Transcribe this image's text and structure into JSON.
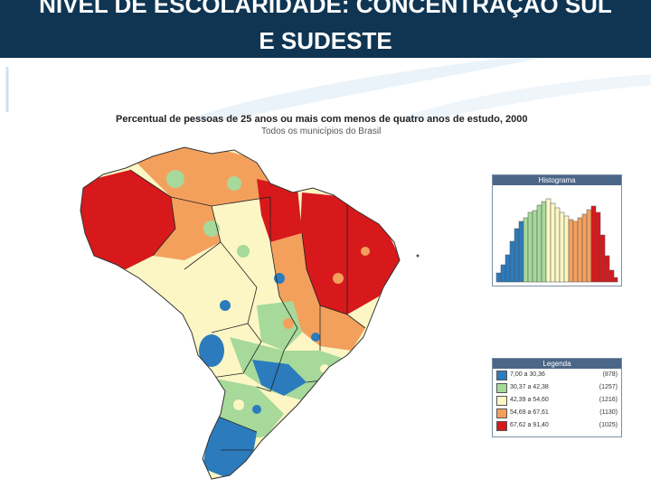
{
  "slide": {
    "title_line1": "NÍVEL DE ESCOLARIDADE: CONCENTRAÇÃO SUL",
    "title_line2": "E SUDESTE"
  },
  "map": {
    "title": "Percentual de pessoas de 25 anos ou mais com menos de quatro anos de estudo, 2000",
    "subtitle": "Todos os municípios do Brasil"
  },
  "histogram": {
    "title": "Histograma"
  },
  "legend": {
    "title": "Legenda",
    "items": [
      {
        "range": "7,00 a 30,36",
        "count": "(878)",
        "color": "#2b7bbd"
      },
      {
        "range": "30,37 a 42,38",
        "count": "(1257)",
        "color": "#a6d99a"
      },
      {
        "range": "42,39 a 54,60",
        "count": "(1216)",
        "color": "#fbf6c4"
      },
      {
        "range": "54,69 a 67,61",
        "count": "(1130)",
        "color": "#f4a05d"
      },
      {
        "range": "67,62 a 91,40",
        "count": "(1025)",
        "color": "#d7191c"
      }
    ]
  }
}
